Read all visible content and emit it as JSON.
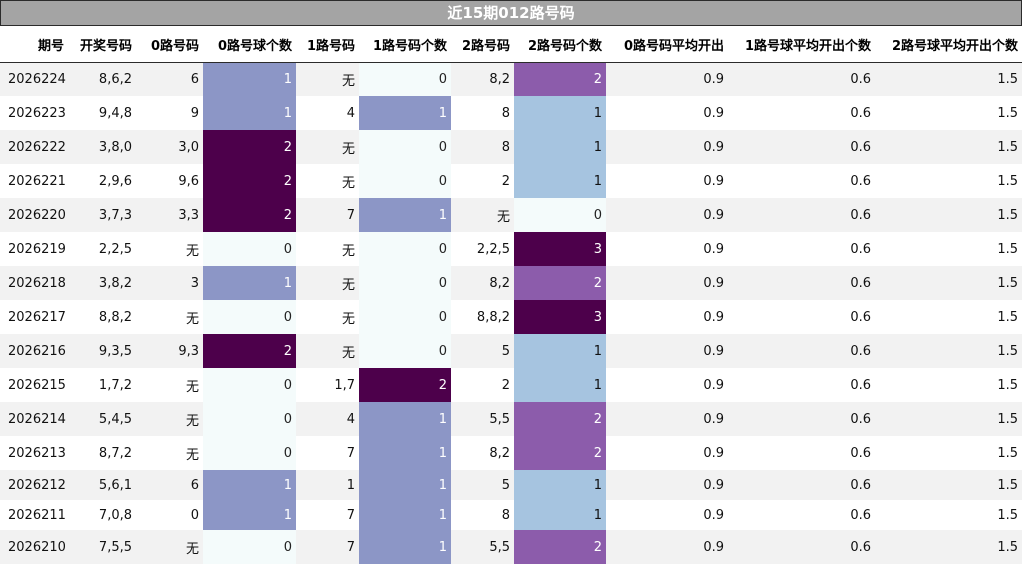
{
  "title": "近15期012路号码",
  "columns": [
    "期号",
    "开奖号码",
    "0路号码",
    "0路号球个数",
    "1路号码",
    "1路号码个数",
    "2路号码",
    "2路号码个数",
    "0路号码平均开出",
    "1路号球平均开出个数",
    "2路号球平均开出个数"
  ],
  "rows": [
    [
      "2026224",
      "8,6,2",
      "6",
      "1",
      "无",
      "0",
      "8,2",
      "2",
      "0.9",
      "0.6",
      "1.5"
    ],
    [
      "2026223",
      "9,4,8",
      "9",
      "1",
      "4",
      "1",
      "8",
      "1",
      "0.9",
      "0.6",
      "1.5"
    ],
    [
      "2026222",
      "3,8,0",
      "3,0",
      "2",
      "无",
      "0",
      "8",
      "1",
      "0.9",
      "0.6",
      "1.5"
    ],
    [
      "2026221",
      "2,9,6",
      "9,6",
      "2",
      "无",
      "0",
      "2",
      "1",
      "0.9",
      "0.6",
      "1.5"
    ],
    [
      "2026220",
      "3,7,3",
      "3,3",
      "2",
      "7",
      "1",
      "无",
      "0",
      "0.9",
      "0.6",
      "1.5"
    ],
    [
      "2026219",
      "2,2,5",
      "无",
      "0",
      "无",
      "0",
      "2,2,5",
      "3",
      "0.9",
      "0.6",
      "1.5"
    ],
    [
      "2026218",
      "3,8,2",
      "3",
      "1",
      "无",
      "0",
      "8,2",
      "2",
      "0.9",
      "0.6",
      "1.5"
    ],
    [
      "2026217",
      "8,8,2",
      "无",
      "0",
      "无",
      "0",
      "8,8,2",
      "3",
      "0.9",
      "0.6",
      "1.5"
    ],
    [
      "2026216",
      "9,3,5",
      "9,3",
      "2",
      "无",
      "0",
      "5",
      "1",
      "0.9",
      "0.6",
      "1.5"
    ],
    [
      "2026215",
      "1,7,2",
      "无",
      "0",
      "1,7",
      "2",
      "2",
      "1",
      "0.9",
      "0.6",
      "1.5"
    ],
    [
      "2026214",
      "5,4,5",
      "无",
      "0",
      "4",
      "1",
      "5,5",
      "2",
      "0.9",
      "0.6",
      "1.5"
    ],
    [
      "2026213",
      "8,7,2",
      "无",
      "0",
      "7",
      "1",
      "8,2",
      "2",
      "0.9",
      "0.6",
      "1.5"
    ],
    [
      "2026212",
      "5,6,1",
      "6",
      "1",
      "1",
      "1",
      "5",
      "1",
      "0.9",
      "0.6",
      "1.5"
    ],
    [
      "2026211",
      "7,0,8",
      "0",
      "1",
      "7",
      "1",
      "8",
      "1",
      "0.9",
      "0.6",
      "1.5"
    ],
    [
      "2026210",
      "7,5,5",
      "无",
      "0",
      "7",
      "1",
      "5,5",
      "2",
      "0.9",
      "0.6",
      "1.5"
    ]
  ],
  "heat_colors": {
    "count_0": "#f4fbfb",
    "count_1": "#8c96c6",
    "count_2": "#4d004b",
    "col2_count_1": "#a6c4e0",
    "col2_count_2": "#8c5cab",
    "col2_count_3": "#4d004b",
    "title_bar": "#a4a4a4",
    "stripe": "#f2f2f2"
  }
}
